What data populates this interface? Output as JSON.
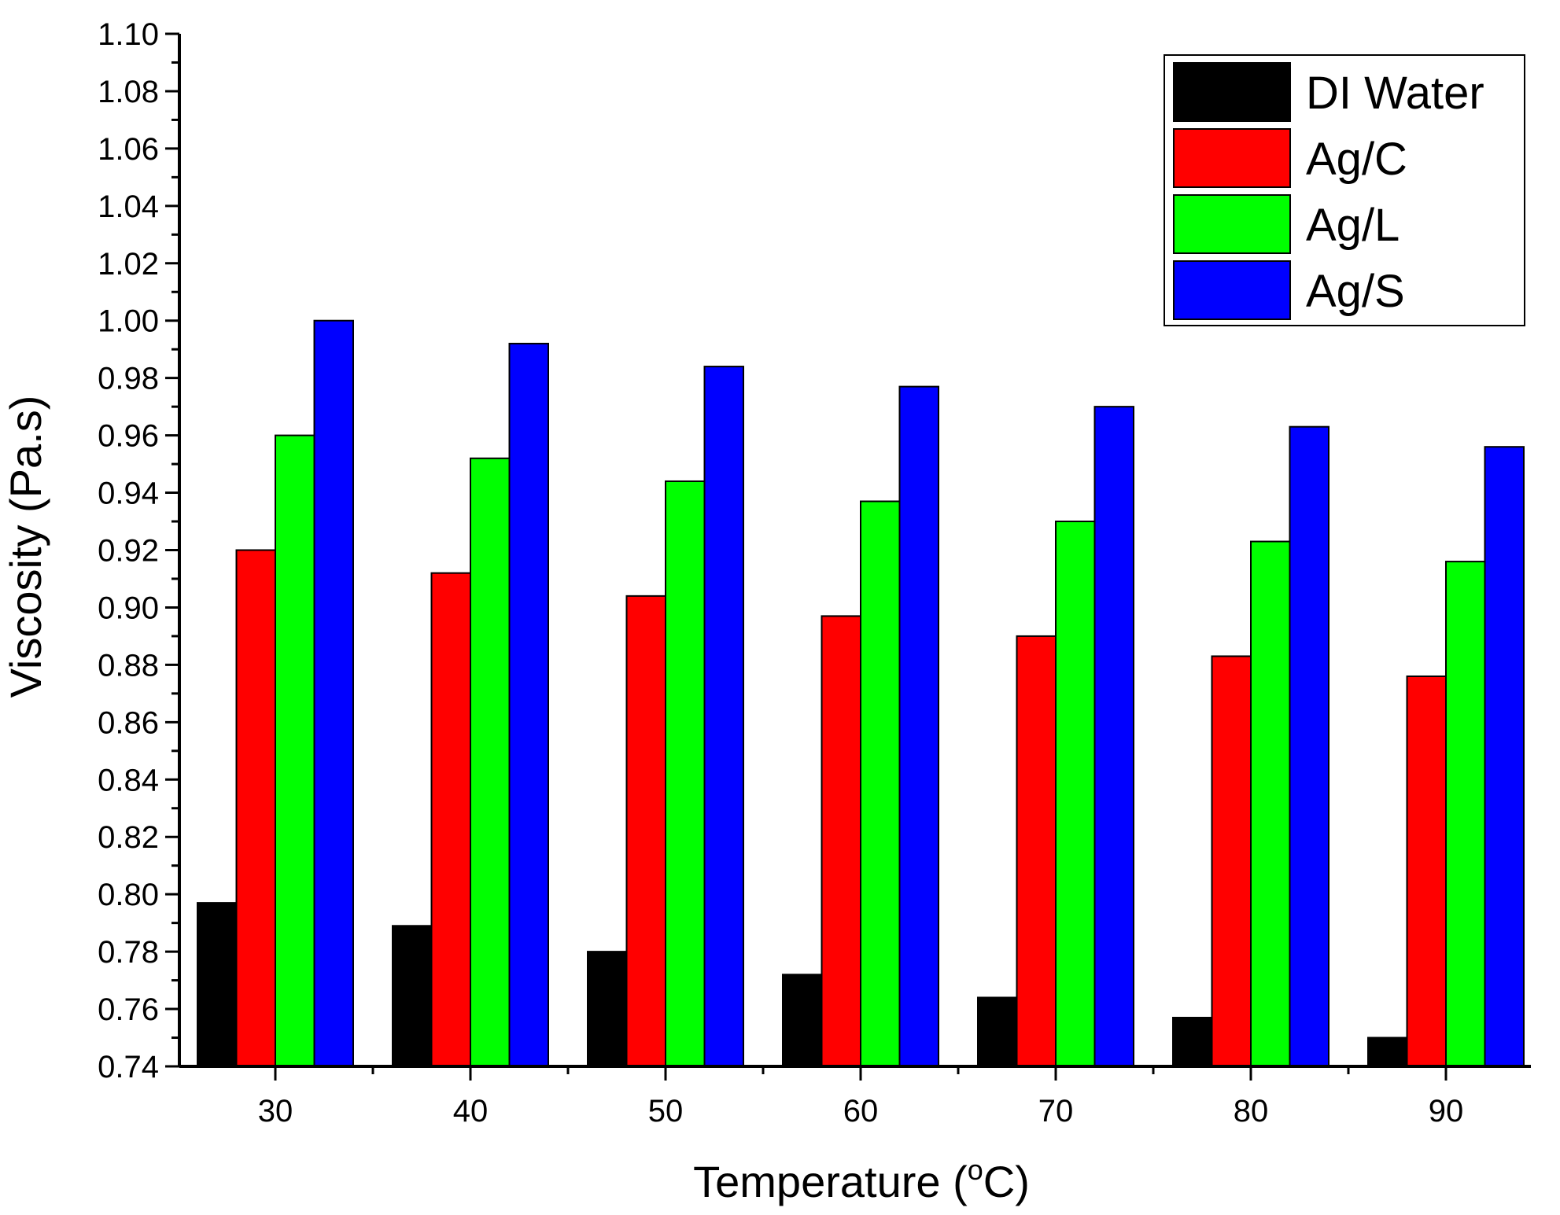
{
  "chart_data": {
    "type": "bar",
    "title": "",
    "xlabel_main": "Temperature (",
    "xlabel_sup": "o",
    "xlabel_tail": "C)",
    "ylabel": "Viscosity (Pa.s)",
    "categories": [
      "30",
      "40",
      "50",
      "60",
      "70",
      "80",
      "90"
    ],
    "ylim": [
      0.74,
      1.1
    ],
    "ytick_step": 0.02,
    "ytick_labels": [
      "0.74",
      "0.76",
      "0.78",
      "0.80",
      "0.82",
      "0.84",
      "0.86",
      "0.88",
      "0.90",
      "0.92",
      "0.94",
      "0.96",
      "0.98",
      "1.00",
      "1.02",
      "1.04",
      "1.06",
      "1.08",
      "1.10"
    ],
    "grid": false,
    "legend_position": "top-right",
    "series": [
      {
        "name": "DI Water",
        "color": "#000000",
        "values": [
          0.797,
          0.789,
          0.78,
          0.772,
          0.764,
          0.757,
          0.75
        ]
      },
      {
        "name": "Ag/C",
        "color": "#ff0000",
        "values": [
          0.92,
          0.912,
          0.904,
          0.897,
          0.89,
          0.883,
          0.876
        ]
      },
      {
        "name": "Ag/L",
        "color": "#00ff00",
        "values": [
          0.96,
          0.952,
          0.944,
          0.937,
          0.93,
          0.923,
          0.916
        ]
      },
      {
        "name": "Ag/S",
        "color": "#0000ff",
        "values": [
          1.0,
          0.992,
          0.984,
          0.977,
          0.97,
          0.963,
          0.956
        ]
      }
    ]
  }
}
